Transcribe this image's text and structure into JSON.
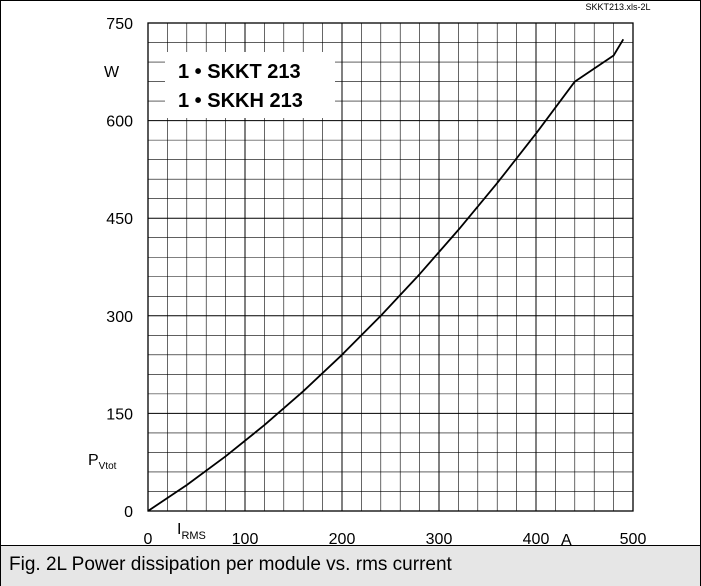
{
  "source_tag": "SKKT213.xls-2L",
  "caption": "Fig. 2L Power dissipation per module vs. rms current",
  "colors": {
    "curve": "#000000",
    "grid": "#000000",
    "caption_bg": "#e6e6e6"
  },
  "chart_data": {
    "type": "line",
    "title": "",
    "legend_box": [
      "1 • SKKT 213",
      "1 • SKKH 213"
    ],
    "y_unit": "W",
    "y_label": {
      "main": "P",
      "sub": "Vtot"
    },
    "x_unit": "A",
    "x_label": {
      "main": "I",
      "sub": "RMS"
    },
    "xlim": [
      0,
      500
    ],
    "ylim": [
      0,
      750
    ],
    "x_ticks": [
      0,
      100,
      200,
      300,
      400,
      500
    ],
    "x_tick_labels": [
      "0",
      "100",
      "200",
      "300",
      "400",
      "500"
    ],
    "y_ticks": [
      0,
      150,
      300,
      450,
      600,
      750
    ],
    "y_tick_labels": [
      "0",
      "150",
      "300",
      "450",
      "600",
      "750"
    ],
    "grid": true,
    "x_minor_step": 20,
    "y_minor_step": 30,
    "series": [
      {
        "x": [
          0,
          40,
          80,
          120,
          160,
          200,
          240,
          280,
          320,
          360,
          400,
          440,
          480,
          490
        ],
        "y": [
          0,
          40,
          84,
          132,
          184,
          240,
          300,
          364,
          432,
          504,
          580,
          660,
          700,
          725
        ]
      }
    ]
  }
}
